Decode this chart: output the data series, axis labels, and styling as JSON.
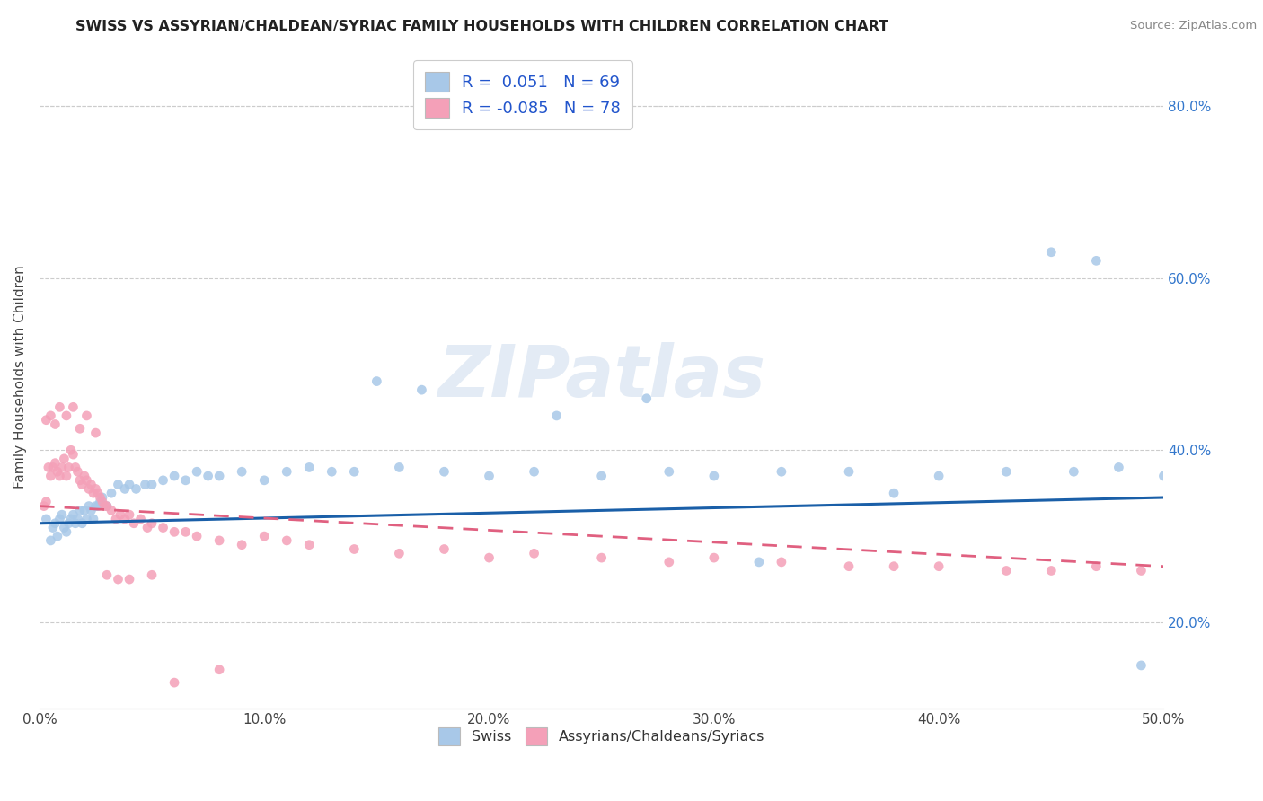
{
  "title": "SWISS VS ASSYRIAN/CHALDEAN/SYRIAC FAMILY HOUSEHOLDS WITH CHILDREN CORRELATION CHART",
  "source": "Source: ZipAtlas.com",
  "ylabel": "Family Households with Children",
  "xlim": [
    0.0,
    0.5
  ],
  "ylim": [
    0.1,
    0.87
  ],
  "xticks": [
    0.0,
    0.1,
    0.2,
    0.3,
    0.4,
    0.5
  ],
  "xticklabels": [
    "0.0%",
    "10.0%",
    "20.0%",
    "30.0%",
    "40.0%",
    "50.0%"
  ],
  "yticks_right": [
    0.2,
    0.4,
    0.6,
    0.8
  ],
  "yticklabels_right": [
    "20.0%",
    "40.0%",
    "60.0%",
    "80.0%"
  ],
  "swiss_color": "#a8c8e8",
  "assyrian_color": "#f4a0b8",
  "trend_swiss_color": "#1a5fa8",
  "trend_assyrian_color": "#e06080",
  "background_color": "#ffffff",
  "watermark": "ZIPatlas",
  "swiss_scatter_x": [
    0.003,
    0.005,
    0.006,
    0.007,
    0.008,
    0.009,
    0.01,
    0.011,
    0.012,
    0.013,
    0.014,
    0.015,
    0.016,
    0.017,
    0.018,
    0.019,
    0.02,
    0.021,
    0.022,
    0.023,
    0.024,
    0.025,
    0.026,
    0.027,
    0.028,
    0.03,
    0.032,
    0.035,
    0.038,
    0.04,
    0.043,
    0.047,
    0.05,
    0.055,
    0.06,
    0.065,
    0.07,
    0.075,
    0.08,
    0.09,
    0.1,
    0.11,
    0.12,
    0.13,
    0.14,
    0.16,
    0.18,
    0.2,
    0.22,
    0.25,
    0.28,
    0.3,
    0.33,
    0.36,
    0.4,
    0.43,
    0.46,
    0.48,
    0.5,
    0.15,
    0.17,
    0.23,
    0.27,
    0.32,
    0.38,
    0.45,
    0.47,
    0.49
  ],
  "swiss_scatter_y": [
    0.32,
    0.295,
    0.31,
    0.315,
    0.3,
    0.32,
    0.325,
    0.31,
    0.305,
    0.315,
    0.32,
    0.325,
    0.315,
    0.32,
    0.33,
    0.315,
    0.33,
    0.32,
    0.335,
    0.33,
    0.32,
    0.335,
    0.335,
    0.34,
    0.345,
    0.335,
    0.35,
    0.36,
    0.355,
    0.36,
    0.355,
    0.36,
    0.36,
    0.365,
    0.37,
    0.365,
    0.375,
    0.37,
    0.37,
    0.375,
    0.365,
    0.375,
    0.38,
    0.375,
    0.375,
    0.38,
    0.375,
    0.37,
    0.375,
    0.37,
    0.375,
    0.37,
    0.375,
    0.375,
    0.37,
    0.375,
    0.375,
    0.38,
    0.37,
    0.48,
    0.47,
    0.44,
    0.46,
    0.27,
    0.35,
    0.63,
    0.62,
    0.15
  ],
  "assyrian_scatter_x": [
    0.002,
    0.003,
    0.004,
    0.005,
    0.006,
    0.007,
    0.008,
    0.009,
    0.01,
    0.011,
    0.012,
    0.013,
    0.014,
    0.015,
    0.016,
    0.017,
    0.018,
    0.019,
    0.02,
    0.021,
    0.022,
    0.023,
    0.024,
    0.025,
    0.026,
    0.027,
    0.028,
    0.029,
    0.03,
    0.032,
    0.034,
    0.036,
    0.038,
    0.04,
    0.042,
    0.045,
    0.048,
    0.05,
    0.055,
    0.06,
    0.065,
    0.07,
    0.08,
    0.09,
    0.1,
    0.11,
    0.12,
    0.14,
    0.16,
    0.18,
    0.2,
    0.22,
    0.25,
    0.28,
    0.3,
    0.33,
    0.36,
    0.38,
    0.4,
    0.43,
    0.45,
    0.47,
    0.49,
    0.003,
    0.005,
    0.007,
    0.009,
    0.012,
    0.015,
    0.018,
    0.021,
    0.025,
    0.03,
    0.035,
    0.04,
    0.05,
    0.06,
    0.08
  ],
  "assyrian_scatter_y": [
    0.335,
    0.34,
    0.38,
    0.37,
    0.38,
    0.385,
    0.375,
    0.37,
    0.38,
    0.39,
    0.37,
    0.38,
    0.4,
    0.395,
    0.38,
    0.375,
    0.365,
    0.36,
    0.37,
    0.365,
    0.355,
    0.36,
    0.35,
    0.355,
    0.35,
    0.345,
    0.34,
    0.335,
    0.335,
    0.33,
    0.32,
    0.325,
    0.32,
    0.325,
    0.315,
    0.32,
    0.31,
    0.315,
    0.31,
    0.305,
    0.305,
    0.3,
    0.295,
    0.29,
    0.3,
    0.295,
    0.29,
    0.285,
    0.28,
    0.285,
    0.275,
    0.28,
    0.275,
    0.27,
    0.275,
    0.27,
    0.265,
    0.265,
    0.265,
    0.26,
    0.26,
    0.265,
    0.26,
    0.435,
    0.44,
    0.43,
    0.45,
    0.44,
    0.45,
    0.425,
    0.44,
    0.42,
    0.255,
    0.25,
    0.25,
    0.255,
    0.13,
    0.145
  ]
}
